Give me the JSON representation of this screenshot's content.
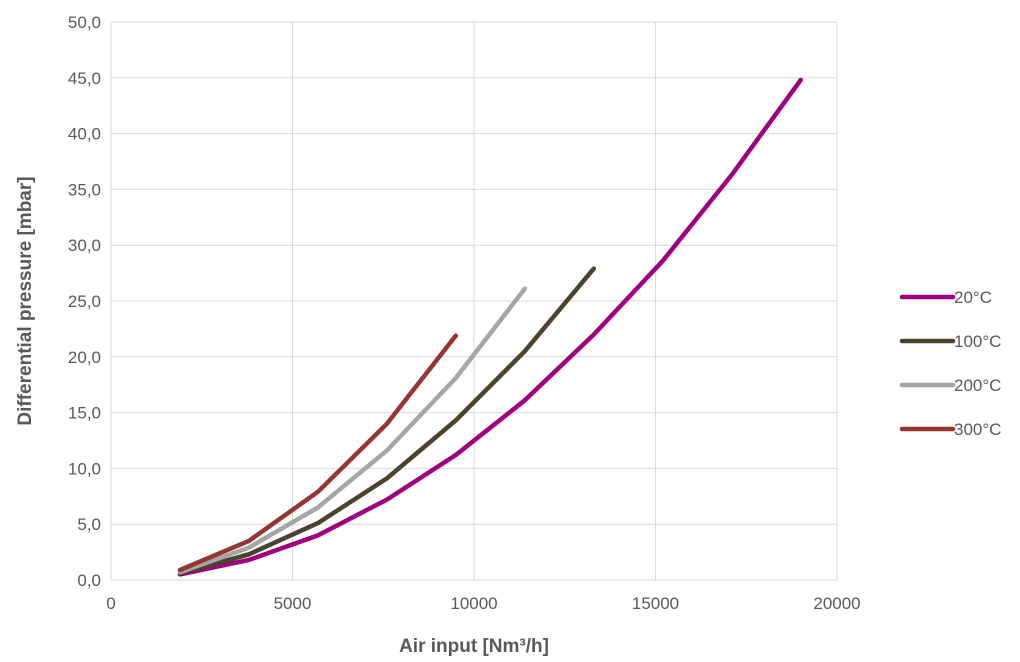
{
  "chart_data": {
    "type": "line",
    "title": "",
    "xlabel": "Air input [Nm³/h]",
    "ylabel": "Differential pressure [mbar]",
    "xlim": [
      0,
      20000
    ],
    "ylim": [
      0,
      50
    ],
    "x_ticks": [
      "0",
      "5000",
      "10000",
      "15000",
      "20000"
    ],
    "y_ticks": [
      "0,0",
      "5,0",
      "10,0",
      "15,0",
      "20,0",
      "25,0",
      "30,0",
      "35,0",
      "40,0",
      "45,0",
      "50,0"
    ],
    "grid": true,
    "legend_position": "right",
    "series": [
      {
        "name": "20°C",
        "color": "#a0007f",
        "points": [
          [
            1900,
            0.5
          ],
          [
            3800,
            1.8
          ],
          [
            5700,
            4.0
          ],
          [
            7600,
            7.2
          ],
          [
            9500,
            11.2
          ],
          [
            11400,
            16.1
          ],
          [
            13300,
            22.0
          ],
          [
            15200,
            28.6
          ],
          [
            17100,
            36.3
          ],
          [
            19000,
            44.8
          ]
        ]
      },
      {
        "name": "100°C",
        "color": "#4a4330",
        "points": [
          [
            1900,
            0.6
          ],
          [
            3800,
            2.3
          ],
          [
            5700,
            5.1
          ],
          [
            7600,
            9.1
          ],
          [
            9500,
            14.3
          ],
          [
            11400,
            20.5
          ],
          [
            13300,
            27.9
          ]
        ]
      },
      {
        "name": "200°C",
        "color": "#a6a6a6",
        "points": [
          [
            1900,
            0.7
          ],
          [
            3800,
            2.9
          ],
          [
            5700,
            6.5
          ],
          [
            7600,
            11.6
          ],
          [
            9500,
            18.1
          ],
          [
            11400,
            26.1
          ]
        ]
      },
      {
        "name": "300°C",
        "color": "#943634",
        "points": [
          [
            1900,
            0.9
          ],
          [
            3800,
            3.5
          ],
          [
            5700,
            7.9
          ],
          [
            7600,
            14.0
          ],
          [
            9500,
            21.9
          ]
        ]
      }
    ]
  }
}
